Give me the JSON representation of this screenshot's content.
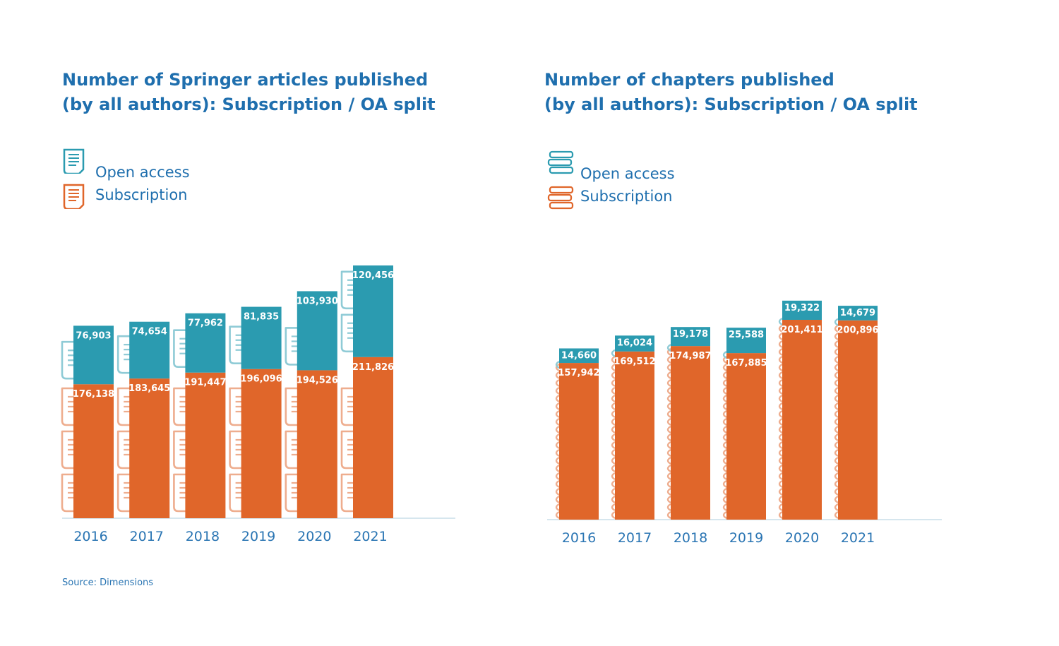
{
  "colors": {
    "open_access": "#2b9bb0",
    "subscription": "#e0662a",
    "title": "#1f6fae",
    "axis": "#c8dde9",
    "label_text": "#ffffff",
    "tick_text": "#2a75b3"
  },
  "legend": {
    "open_access_label": "Open access",
    "subscription_label": "Subscription"
  },
  "icons": {
    "articles": "document-icon",
    "chapters": "book-stack-icon"
  },
  "chart_data": [
    {
      "type": "bar",
      "stacked": true,
      "title": "Number of Springer articles published (by all authors): Subscription / OA split",
      "title_lines": [
        "Number of Springer articles published",
        "(by all authors): Subscription / OA split"
      ],
      "categories": [
        "2016",
        "2017",
        "2018",
        "2019",
        "2020",
        "2021"
      ],
      "series": [
        {
          "name": "Subscription",
          "values": [
            176138,
            183645,
            191447,
            196096,
            194526,
            211826
          ]
        },
        {
          "name": "Open access",
          "values": [
            76903,
            74654,
            77962,
            81835,
            103930,
            120456
          ]
        }
      ],
      "value_labels": {
        "Subscription": [
          "176,138",
          "183,645",
          "191,447",
          "196,096",
          "194,526",
          "211,826"
        ],
        "Open access": [
          "76,903",
          "74,654",
          "77,962",
          "81,835",
          "103,930",
          "120,456"
        ]
      },
      "legend_position": "top-left",
      "grid": false
    },
    {
      "type": "bar",
      "stacked": true,
      "title": "Number of chapters published (by all authors): Subscription / OA split",
      "title_lines": [
        "Number of chapters published",
        "(by all authors): Subscription / OA split"
      ],
      "categories": [
        "2016",
        "2017",
        "2018",
        "2019",
        "2020",
        "2021"
      ],
      "series": [
        {
          "name": "Subscription",
          "values": [
            157942,
            169512,
            174987,
            167885,
            201411,
            200896
          ]
        },
        {
          "name": "Open access",
          "values": [
            14660,
            16024,
            19178,
            25588,
            19322,
            14679
          ]
        }
      ],
      "value_labels": {
        "Subscription": [
          "157,942",
          "169,512",
          "174,987",
          "167,885",
          "201,411",
          "200,896"
        ],
        "Open access": [
          "14,660",
          "16,024",
          "19,178",
          "25,588",
          "19,322",
          "14,679"
        ]
      },
      "legend_position": "top-left",
      "grid": false
    }
  ],
  "source": "Source: Dimensions"
}
